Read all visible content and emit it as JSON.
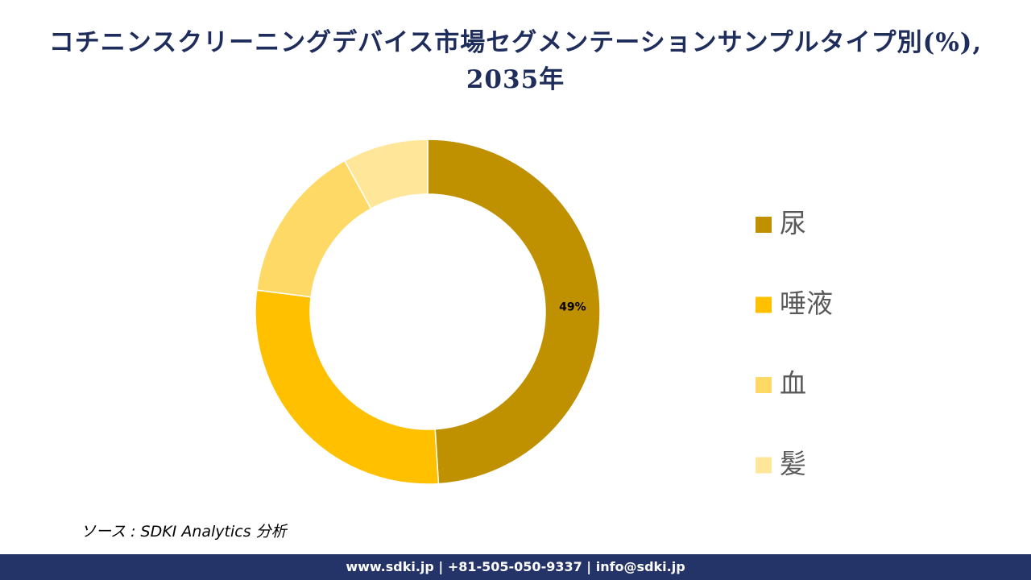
{
  "chart_data": {
    "type": "donut",
    "title": "コチニンスクリーニングデバイス市場セグメンテーションサンプルタイプ別(%), 2035年",
    "categories": [
      "尿",
      "唾液",
      "血",
      "髪"
    ],
    "values": [
      49,
      28,
      15,
      8
    ],
    "value_labels": [
      "49%",
      null,
      null,
      null
    ],
    "colors": [
      "#BF9000",
      "#FFC000",
      "#FFD966",
      "#FFE699"
    ],
    "legend": "right"
  },
  "source": "ソース : SDKI Analytics  分析",
  "footer": "www.sdki.jp | +81-505-050-9337 | info@sdki.jp"
}
